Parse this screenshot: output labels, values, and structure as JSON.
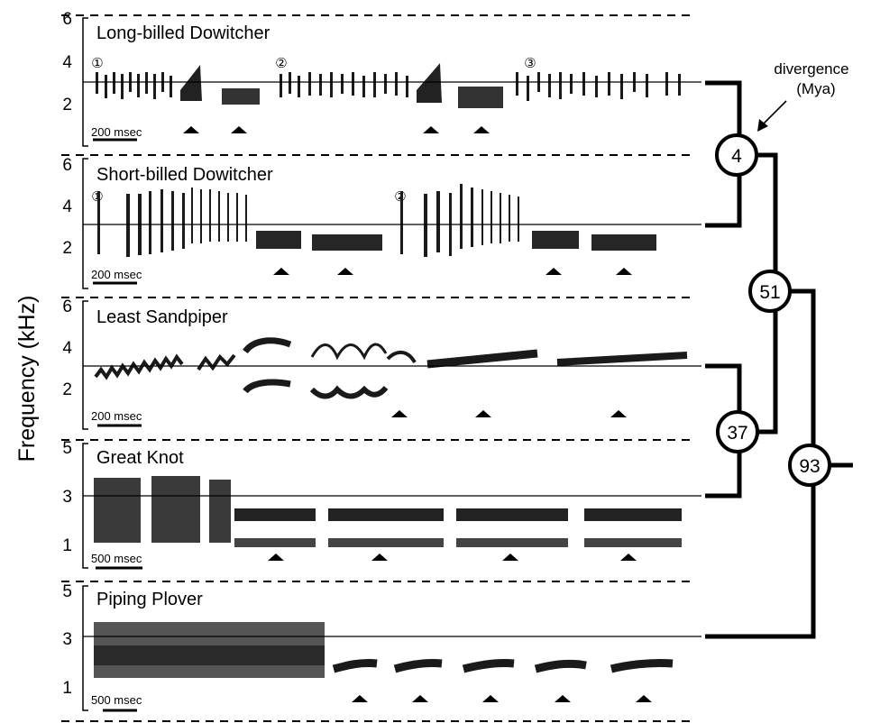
{
  "figure": {
    "y_axis_label": "Frequency (kHz)",
    "divergence_label_line1": "divergence",
    "divergence_label_line2": "(Mya)"
  },
  "panels": [
    {
      "species": "Long-billed Dowitcher",
      "ticks": [
        "6",
        "4",
        "2"
      ],
      "scale_bar": "200 msec",
      "markers": [
        "①",
        "②",
        "③"
      ]
    },
    {
      "species": "Short-billed Dowitcher",
      "ticks": [
        "6",
        "4",
        "2"
      ],
      "scale_bar": "200 msec",
      "markers": [
        "①",
        "②"
      ]
    },
    {
      "species": "Least Sandpiper",
      "ticks": [
        "6",
        "4",
        "2"
      ],
      "scale_bar": "200 msec",
      "markers": []
    },
    {
      "species": "Great Knot",
      "ticks": [
        "5",
        "3",
        "1"
      ],
      "scale_bar": "500 msec",
      "markers": []
    },
    {
      "species": "Piping Plover",
      "ticks": [
        "5",
        "3",
        "1"
      ],
      "scale_bar": "500 msec",
      "markers": []
    }
  ],
  "tree": {
    "nodes": [
      {
        "value": "4"
      },
      {
        "value": "51"
      },
      {
        "value": "37"
      },
      {
        "value": "93"
      }
    ]
  }
}
